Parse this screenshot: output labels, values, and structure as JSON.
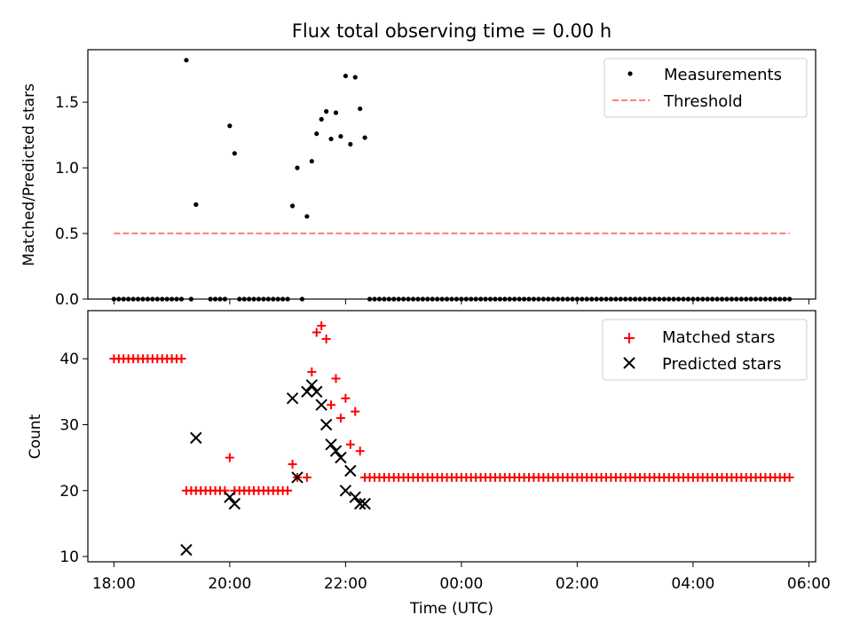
{
  "chart_data": [
    {
      "type": "scatter",
      "title": "Flux total observing time = 0.00 h",
      "xlabel": "",
      "ylabel": "Matched/Predicted stars",
      "ylim": [
        0,
        1.9
      ],
      "xlim": [
        "17:33",
        "06:07"
      ],
      "yticks": [
        "0.0",
        "0.5",
        "1.0",
        "1.5"
      ],
      "legend_position": "top-right",
      "series": [
        {
          "name": "Measurements",
          "kind": "points",
          "color": "#000000",
          "groups": [
            {
              "x_start": "18:00",
              "x_end": "19:10",
              "step_min": 5,
              "y": 0.0
            },
            {
              "x_start": "19:40",
              "x_end": "19:55",
              "step_min": 5,
              "y": 0.0
            },
            {
              "x_start": "20:10",
              "x_end": "21:00",
              "step_min": 5,
              "y": 0.0
            },
            {
              "x_start": "22:25",
              "x_end": "05:40",
              "step_min": 5,
              "y": 0.0
            }
          ],
          "points": [
            {
              "x": "19:15",
              "y": 1.82
            },
            {
              "x": "19:20",
              "y": 0.0
            },
            {
              "x": "19:25",
              "y": 0.72
            },
            {
              "x": "20:00",
              "y": 1.32
            },
            {
              "x": "20:05",
              "y": 1.11
            },
            {
              "x": "21:05",
              "y": 0.71
            },
            {
              "x": "21:10",
              "y": 1.0
            },
            {
              "x": "21:15",
              "y": 0.0
            },
            {
              "x": "21:20",
              "y": 0.63
            },
            {
              "x": "21:25",
              "y": 1.05
            },
            {
              "x": "21:30",
              "y": 1.26
            },
            {
              "x": "21:35",
              "y": 1.37
            },
            {
              "x": "21:40",
              "y": 1.43
            },
            {
              "x": "21:45",
              "y": 1.22
            },
            {
              "x": "21:50",
              "y": 1.42
            },
            {
              "x": "21:55",
              "y": 1.24
            },
            {
              "x": "22:00",
              "y": 1.7
            },
            {
              "x": "22:05",
              "y": 1.18
            },
            {
              "x": "22:10",
              "y": 1.69
            },
            {
              "x": "22:15",
              "y": 1.45
            },
            {
              "x": "22:20",
              "y": 1.23
            }
          ]
        },
        {
          "name": "Threshold",
          "kind": "dashed-line",
          "color": "#ff7f7f",
          "x": [
            "18:00",
            "05:40"
          ],
          "values": [
            0.5,
            0.5
          ]
        }
      ]
    },
    {
      "type": "scatter",
      "title": "",
      "xlabel": "Time (UTC)",
      "ylabel": "Count",
      "ylim": [
        9.2,
        47.3
      ],
      "xlim": [
        "17:33",
        "06:07"
      ],
      "yticks": [
        "10",
        "20",
        "30",
        "40"
      ],
      "xticks": [
        "18:00",
        "20:00",
        "22:00",
        "00:00",
        "02:00",
        "04:00",
        "06:00"
      ],
      "legend_position": "top-right",
      "series": [
        {
          "name": "Matched stars",
          "marker": "plus",
          "color": "#ff0000",
          "groups": [
            {
              "x_start": "18:00",
              "x_end": "19:10",
              "step_min": 5,
              "y": 40
            },
            {
              "x_start": "19:15",
              "x_end": "19:55",
              "step_min": 5,
              "y": 20
            },
            {
              "x_start": "20:05",
              "x_end": "21:00",
              "step_min": 5,
              "y": 20
            },
            {
              "x_start": "22:20",
              "x_end": "05:40",
              "step_min": 5,
              "y": 22
            }
          ],
          "points": [
            {
              "x": "20:00",
              "y": 25
            },
            {
              "x": "21:05",
              "y": 24
            },
            {
              "x": "21:10",
              "y": 22
            },
            {
              "x": "21:20",
              "y": 22
            },
            {
              "x": "21:25",
              "y": 38
            },
            {
              "x": "21:30",
              "y": 44
            },
            {
              "x": "21:35",
              "y": 45
            },
            {
              "x": "21:40",
              "y": 43
            },
            {
              "x": "21:45",
              "y": 33
            },
            {
              "x": "21:50",
              "y": 37
            },
            {
              "x": "21:55",
              "y": 31
            },
            {
              "x": "22:00",
              "y": 34
            },
            {
              "x": "22:05",
              "y": 27
            },
            {
              "x": "22:10",
              "y": 32
            },
            {
              "x": "22:15",
              "y": 26
            }
          ]
        },
        {
          "name": "Predicted stars",
          "marker": "x",
          "color": "#000000",
          "points": [
            {
              "x": "19:15",
              "y": 11
            },
            {
              "x": "19:25",
              "y": 28
            },
            {
              "x": "20:00",
              "y": 19
            },
            {
              "x": "20:05",
              "y": 18
            },
            {
              "x": "21:05",
              "y": 34
            },
            {
              "x": "21:10",
              "y": 22
            },
            {
              "x": "21:20",
              "y": 35
            },
            {
              "x": "21:25",
              "y": 36
            },
            {
              "x": "21:30",
              "y": 35
            },
            {
              "x": "21:35",
              "y": 33
            },
            {
              "x": "21:40",
              "y": 30
            },
            {
              "x": "21:45",
              "y": 27
            },
            {
              "x": "21:50",
              "y": 26
            },
            {
              "x": "21:55",
              "y": 25
            },
            {
              "x": "22:00",
              "y": 20
            },
            {
              "x": "22:05",
              "y": 23
            },
            {
              "x": "22:10",
              "y": 19
            },
            {
              "x": "22:15",
              "y": 18
            },
            {
              "x": "22:20",
              "y": 18
            }
          ]
        }
      ]
    }
  ]
}
